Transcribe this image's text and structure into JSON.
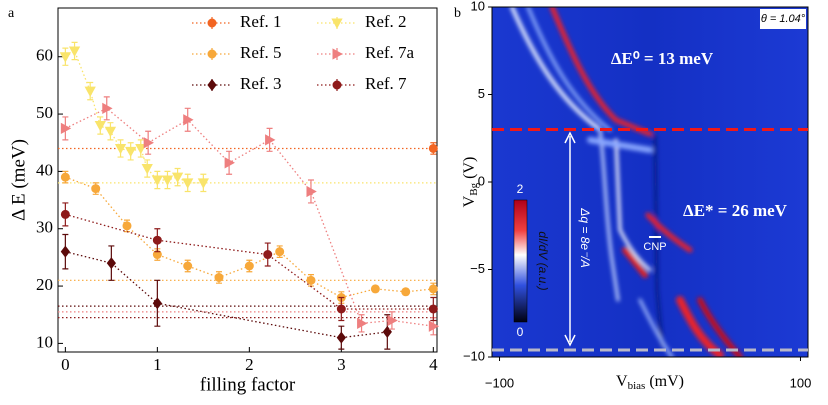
{
  "chart_data": [
    {
      "type": "scatter",
      "panel_label": "a",
      "xlabel": "filling factor",
      "ylabel": "Δ E (meV)",
      "xlim": [
        -0.08,
        4.04
      ],
      "ylim": [
        8.5,
        68.5
      ],
      "xticks": [
        0,
        1,
        2,
        3,
        4
      ],
      "yticks": [
        10,
        20,
        30,
        40,
        50,
        60
      ],
      "legend": "upper right",
      "series": [
        {
          "name": "Ref. 1",
          "color": "#f26522",
          "marker": "circle",
          "x": [
            4
          ],
          "y": [
            44
          ],
          "errors": [
            1
          ]
        },
        {
          "name": "Ref. 5",
          "color": "#f7a83a",
          "marker": "circle",
          "x": [
            0,
            0.33,
            0.67,
            1,
            1.33,
            1.67,
            2,
            2.33,
            2.67,
            3,
            3.37,
            3.7,
            4
          ],
          "y": [
            39,
            37,
            30.5,
            25.5,
            23.5,
            21.5,
            23.5,
            26,
            21,
            18,
            19.5,
            19,
            19.5
          ],
          "errors": [
            1,
            1,
            1,
            1,
            1,
            1,
            1,
            1,
            1,
            1,
            0.5,
            0.5,
            1
          ]
        },
        {
          "name": "Ref. 3",
          "color": "#5c0a0a",
          "marker": "diamond",
          "x": [
            0,
            0.5,
            1,
            3,
            3.5
          ],
          "y": [
            26,
            24,
            17,
            11,
            12
          ],
          "errors": [
            3,
            3,
            4,
            2,
            3
          ]
        },
        {
          "name": "Ref. 2",
          "color": "#f9e46b",
          "marker": "tri-down",
          "x": [
            0,
            0.1,
            0.27,
            0.38,
            0.49,
            0.6,
            0.71,
            0.82,
            0.89,
            1,
            1.11,
            1.22,
            1.33,
            1.5
          ],
          "y": [
            60,
            61,
            54,
            48,
            47,
            44,
            43.5,
            44,
            40.5,
            38.5,
            38.5,
            39,
            38,
            38
          ],
          "errors": [
            1.5,
            1.5,
            1.5,
            1.5,
            1.5,
            1.5,
            1.5,
            1.5,
            1.5,
            1.5,
            1.5,
            1.5,
            1.5,
            1.5
          ]
        },
        {
          "name": "Ref. 7a",
          "color": "#ee7f7f",
          "marker": "tri-right",
          "x": [
            0,
            0.45,
            0.9,
            1.33,
            1.78,
            2.22,
            2.67,
            3.22,
            3.55,
            4
          ],
          "y": [
            47.5,
            51,
            45,
            49,
            41.5,
            45.5,
            36.5,
            13.5,
            14,
            13
          ],
          "errors": [
            2,
            2,
            2,
            2,
            2,
            2,
            2,
            1.5,
            1.5,
            1.5
          ]
        },
        {
          "name": "Ref. 7",
          "color": "#8e1b1b",
          "marker": "circle",
          "x": [
            0,
            1,
            2.2,
            3,
            4
          ],
          "y": [
            32.5,
            28,
            25.5,
            16,
            16
          ],
          "errors": [
            2,
            2,
            2,
            2,
            2
          ]
        }
      ],
      "hlines": [
        {
          "value": 44,
          "color": "#f26522"
        },
        {
          "value": 38,
          "color": "#f9e46b"
        },
        {
          "value": 21,
          "color": "#f7a83a"
        },
        {
          "value": 16.5,
          "color": "#5c0a0a"
        },
        {
          "value": 15.5,
          "color": "#ee7f7f"
        },
        {
          "value": 14.5,
          "color": "#8e1b1b"
        }
      ]
    },
    {
      "type": "colormap",
      "panel_label": "b",
      "xlabel": [
        "V",
        "bias",
        " (mV)"
      ],
      "ylabel": [
        "V",
        "Bg",
        " (V)"
      ],
      "xlim": [
        -105,
        105
      ],
      "ylim": [
        -10,
        10
      ],
      "xticks": [
        {
          "value": -100,
          "label": "−100"
        },
        100
      ],
      "yticks": [
        10,
        5,
        0,
        {
          "value": -5,
          "label": "−5"
        },
        {
          "value": -10,
          "label": "−10"
        }
      ],
      "hlines": [
        {
          "value": 3,
          "color": "#f01818"
        },
        {
          "value": -9.6,
          "color": "#b8b8c8"
        }
      ],
      "colorbar": {
        "label": "dI/dV (a.u.)",
        "lim": [
          0,
          2
        ],
        "ticks": [
          0,
          2
        ]
      },
      "annotations": [
        "ΔE⁰ = 13 meV",
        "ΔE* = 26 meV",
        "θ = 1.04°",
        "Δq = 8e⁻/A",
        "CNP"
      ]
    }
  ]
}
